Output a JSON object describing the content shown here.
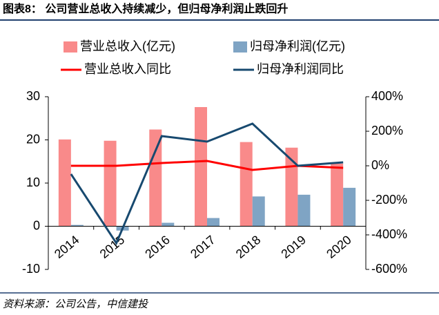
{
  "chart_data": {
    "type": "combo",
    "title": "图表8： 公司营业总收入持续减少，但归母净利润止跌回升",
    "source": "资料来源：公司公告，中信建投",
    "categories": [
      "2014",
      "2015",
      "2016",
      "2017",
      "2018",
      "2019",
      "2020"
    ],
    "series": [
      {
        "name": "营业总收入(亿元)",
        "type": "bar",
        "color": "#f98a8a",
        "values": [
          20.1,
          19.8,
          22.4,
          27.6,
          19.5,
          18.2,
          14.5
        ]
      },
      {
        "name": "归母净利润(亿元)",
        "type": "bar",
        "color": "#7fa4c4",
        "values": [
          0.3,
          -1.0,
          0.8,
          1.9,
          6.9,
          7.3,
          8.9
        ]
      },
      {
        "name": "营业总收入同比",
        "type": "line",
        "axis": "y2",
        "color": "#ff0000",
        "values": [
          0,
          0,
          16,
          28,
          -24,
          0,
          -12
        ]
      },
      {
        "name": "归母净利润同比",
        "type": "line",
        "axis": "y2",
        "color": "#17496f",
        "values": [
          -48,
          -448,
          172,
          140,
          244,
          0,
          20
        ]
      }
    ],
    "ylim": [
      -10,
      30
    ],
    "yticks": [
      -10,
      0,
      10,
      20,
      30
    ],
    "y2lim": [
      -600,
      400
    ],
    "y2ticks": [
      {
        "value": -600,
        "label": "-600%"
      },
      {
        "value": -400,
        "label": "-400%"
      },
      {
        "value": -200,
        "label": "-200%"
      },
      {
        "value": 0,
        "label": "0%"
      },
      {
        "value": 200,
        "label": "200%"
      },
      {
        "value": 400,
        "label": "400%"
      }
    ]
  }
}
